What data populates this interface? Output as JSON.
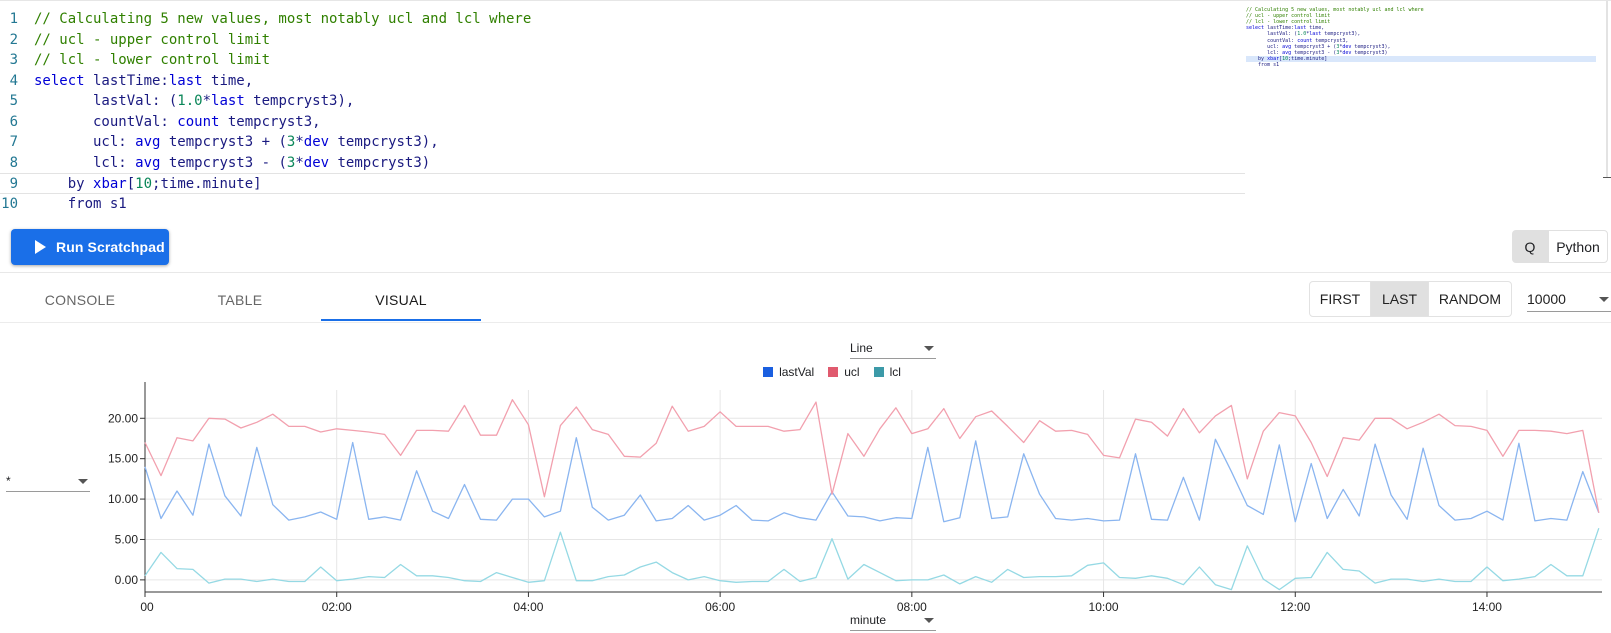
{
  "editor": {
    "lines": [
      {
        "n": "1",
        "tokens": [
          {
            "t": "// Calculating 5 new values, most notably ucl and lcl where",
            "c": "comment"
          }
        ]
      },
      {
        "n": "2",
        "tokens": [
          {
            "t": "// ucl - upper control limit",
            "c": "comment"
          }
        ]
      },
      {
        "n": "3",
        "tokens": [
          {
            "t": "// lcl - lower control limit",
            "c": "comment"
          }
        ]
      },
      {
        "n": "4",
        "tokens": [
          {
            "t": "select",
            "c": "kw"
          },
          {
            "t": " lastTime:",
            "c": "id"
          },
          {
            "t": "last",
            "c": "kw"
          },
          {
            "t": " time,",
            "c": "id"
          }
        ]
      },
      {
        "n": "5",
        "tokens": [
          {
            "t": "       lastVal: (",
            "c": "id"
          },
          {
            "t": "1.0",
            "c": "num"
          },
          {
            "t": "*",
            "c": "id"
          },
          {
            "t": "last",
            "c": "kw"
          },
          {
            "t": " tempcryst3),",
            "c": "id"
          }
        ]
      },
      {
        "n": "6",
        "tokens": [
          {
            "t": "       countVal: ",
            "c": "id"
          },
          {
            "t": "count",
            "c": "kw"
          },
          {
            "t": " tempcryst3,",
            "c": "id"
          }
        ]
      },
      {
        "n": "7",
        "tokens": [
          {
            "t": "       ucl: ",
            "c": "id"
          },
          {
            "t": "avg",
            "c": "kw"
          },
          {
            "t": " tempcryst3 + (",
            "c": "id"
          },
          {
            "t": "3",
            "c": "num"
          },
          {
            "t": "*",
            "c": "id"
          },
          {
            "t": "dev",
            "c": "kw"
          },
          {
            "t": " tempcryst3),",
            "c": "id"
          }
        ]
      },
      {
        "n": "8",
        "tokens": [
          {
            "t": "       lcl: ",
            "c": "id"
          },
          {
            "t": "avg",
            "c": "kw"
          },
          {
            "t": " tempcryst3 - (",
            "c": "id"
          },
          {
            "t": "3",
            "c": "num"
          },
          {
            "t": "*",
            "c": "id"
          },
          {
            "t": "dev",
            "c": "kw"
          },
          {
            "t": " tempcryst3)",
            "c": "id"
          }
        ]
      },
      {
        "n": "9",
        "tokens": [
          {
            "t": "    by ",
            "c": "id"
          },
          {
            "t": "xbar",
            "c": "kw"
          },
          {
            "t": "[",
            "c": "id"
          },
          {
            "t": "10",
            "c": "num"
          },
          {
            "t": ";time.minute]",
            "c": "id"
          }
        ]
      },
      {
        "n": "10",
        "tokens": [
          {
            "t": "    from s1",
            "c": "id"
          }
        ]
      }
    ],
    "current_line": 9
  },
  "toolbar": {
    "run_label": "Run Scratchpad",
    "lang_q": "Q",
    "lang_python": "Python"
  },
  "tabs": [
    {
      "label": "CONSOLE",
      "active": false
    },
    {
      "label": "TABLE",
      "active": false
    },
    {
      "label": "VISUAL",
      "active": true
    }
  ],
  "pickers": {
    "first": "FIRST",
    "last": "LAST",
    "random": "RANDOM",
    "selected": "LAST"
  },
  "row_count": "10000",
  "chart_controls": {
    "chart_type": "Line",
    "series_filter": "*",
    "x_axis": "minute"
  },
  "colors": {
    "lastVal": "#1a5fe0",
    "ucl": "#e05a6e",
    "lcl": "#3c9aa8",
    "accent": "#1a6fe8"
  },
  "chart_data": {
    "type": "line",
    "x_ticks": [
      "00",
      "02:00",
      "04:00",
      "06:00",
      "08:00",
      "10:00",
      "12:00",
      "14:00"
    ],
    "x_range_minutes": [
      0,
      912
    ],
    "ylim": [
      -1.5,
      23.5
    ],
    "y_ticks": [
      0.0,
      5.0,
      10.0,
      15.0,
      20.0
    ],
    "y_tick_labels": [
      "0.00",
      "5.00",
      "10.00",
      "15.00",
      "20.00"
    ],
    "grid": true,
    "legend_position": "top-center",
    "x_minutes": [
      0,
      10,
      20,
      30,
      40,
      50,
      60,
      70,
      80,
      90,
      100,
      110,
      120,
      130,
      140,
      150,
      160,
      170,
      180,
      190,
      200,
      210,
      220,
      230,
      240,
      250,
      260,
      270,
      280,
      290,
      300,
      310,
      320,
      330,
      340,
      350,
      360,
      370,
      380,
      390,
      400,
      410,
      420,
      430,
      440,
      450,
      460,
      470,
      480,
      490,
      500,
      510,
      520,
      530,
      540,
      550,
      560,
      570,
      580,
      590,
      600,
      610,
      620,
      630,
      640,
      650,
      660,
      670,
      680,
      690,
      700,
      710,
      720,
      730,
      740,
      750,
      760,
      770,
      780,
      790,
      800,
      810,
      820,
      830,
      840,
      850,
      860,
      870,
      880,
      890,
      900,
      910
    ],
    "series": [
      {
        "name": "lastVal",
        "values": [
          14.0,
          7.6,
          11.0,
          8.0,
          16.8,
          10.4,
          7.9,
          16.4,
          9.3,
          7.4,
          7.8,
          8.4,
          7.5,
          17.0,
          7.5,
          7.8,
          7.4,
          13.5,
          8.5,
          7.6,
          11.8,
          7.5,
          7.4,
          10.0,
          10.0,
          7.8,
          8.5,
          17.6,
          9.0,
          7.4,
          8.0,
          10.5,
          7.3,
          7.6,
          9.2,
          7.4,
          8.0,
          9.2,
          7.4,
          7.3,
          8.3,
          7.7,
          7.4,
          10.9,
          7.9,
          7.8,
          7.3,
          7.7,
          7.6,
          16.4,
          7.2,
          7.7,
          17.2,
          7.6,
          7.8,
          15.6,
          10.6,
          7.6,
          7.4,
          7.6,
          7.3,
          7.4,
          15.6,
          7.5,
          7.4,
          12.7,
          7.4,
          17.4,
          13.4,
          9.2,
          8.1,
          16.7,
          7.2,
          14.4,
          7.6,
          11.2,
          7.9,
          16.8,
          10.5,
          7.5,
          16.3,
          9.2,
          7.4,
          7.6,
          8.5,
          7.4,
          16.9,
          7.3,
          7.6,
          7.4,
          13.4,
          8.3
        ]
      },
      {
        "name": "ucl",
        "values": [
          17.0,
          12.9,
          17.6,
          17.2,
          20.0,
          19.9,
          18.8,
          19.5,
          20.5,
          19.0,
          19.0,
          18.3,
          18.7,
          18.5,
          18.3,
          18.0,
          15.4,
          18.5,
          18.5,
          18.4,
          21.6,
          17.9,
          17.9,
          22.3,
          19.2,
          10.3,
          19.1,
          21.4,
          18.6,
          18.0,
          15.3,
          15.2,
          16.9,
          21.5,
          18.4,
          19.0,
          20.8,
          19.0,
          19.0,
          19.0,
          18.4,
          18.6,
          22.0,
          10.6,
          18.1,
          15.3,
          18.7,
          21.3,
          18.1,
          18.7,
          21.2,
          17.5,
          20.2,
          20.9,
          19.0,
          17.0,
          19.7,
          18.4,
          18.5,
          18.0,
          15.4,
          15.1,
          19.9,
          19.5,
          17.8,
          21.2,
          18.2,
          20.3,
          21.6,
          12.5,
          18.4,
          20.7,
          20.3,
          17.0,
          12.8,
          17.6,
          17.3,
          20.0,
          20.0,
          18.7,
          19.5,
          20.5,
          19.1,
          19.0,
          18.5,
          15.3,
          18.5,
          18.5,
          18.4,
          18.1,
          18.5,
          8.3
        ]
      },
      {
        "name": "lcl",
        "values": [
          0.5,
          3.4,
          1.4,
          1.3,
          -0.4,
          0.1,
          0.1,
          -0.2,
          0.1,
          -0.2,
          -0.2,
          1.6,
          -0.1,
          0.1,
          0.4,
          0.3,
          1.9,
          0.5,
          0.5,
          0.3,
          -0.1,
          -0.2,
          0.9,
          0.3,
          -0.3,
          -0.1,
          5.9,
          -0.1,
          -0.1,
          0.4,
          0.6,
          1.6,
          2.2,
          0.9,
          0.0,
          0.4,
          -0.1,
          -0.3,
          -0.2,
          -0.2,
          1.3,
          -0.2,
          0.3,
          5.1,
          0.1,
          1.9,
          0.9,
          -0.1,
          0.0,
          0.0,
          0.6,
          -0.5,
          0.4,
          -0.3,
          1.3,
          0.3,
          0.4,
          0.4,
          0.5,
          1.8,
          2.1,
          0.3,
          0.2,
          0.5,
          0.2,
          -0.6,
          1.6,
          -0.6,
          -1.2,
          4.2,
          0.1,
          -1.2,
          0.2,
          0.3,
          3.4,
          1.3,
          1.1,
          -0.4,
          0.1,
          0.1,
          -0.2,
          0.1,
          -0.2,
          -0.2,
          1.6,
          -0.1,
          0.1,
          0.4,
          1.9,
          0.5,
          0.5,
          6.4
        ]
      }
    ]
  }
}
